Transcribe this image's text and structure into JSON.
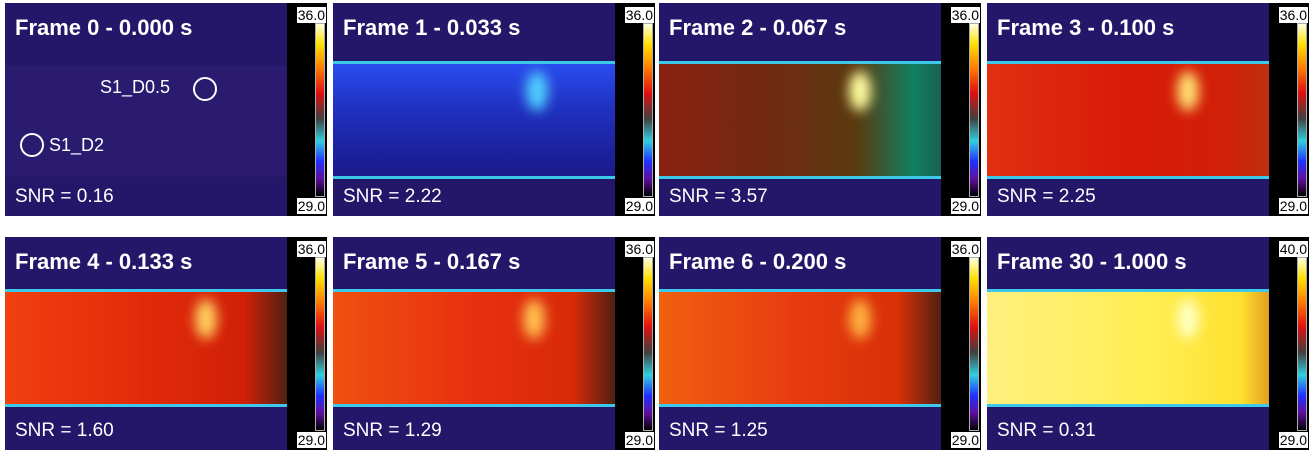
{
  "panels": [
    {
      "title": "Frame 0 - 0.000 s",
      "snr": "SNR = 0.16",
      "cbar_max": "36.0",
      "cbar_min": "29.0",
      "annotations": [
        "S1_D0.5",
        "S1_D2"
      ]
    },
    {
      "title": "Frame 1 - 0.033 s",
      "snr": "SNR = 2.22",
      "cbar_max": "36.0",
      "cbar_min": "29.0"
    },
    {
      "title": "Frame 2 - 0.067 s",
      "snr": "SNR = 3.57",
      "cbar_max": "36.0",
      "cbar_min": "29.0"
    },
    {
      "title": "Frame 3 - 0.100 s",
      "snr": "SNR = 2.25",
      "cbar_max": "36.0",
      "cbar_min": "29.0"
    },
    {
      "title": "Frame 4 - 0.133 s",
      "snr": "SNR = 1.60",
      "cbar_max": "36.0",
      "cbar_min": "29.0"
    },
    {
      "title": "Frame 5 - 0.167 s",
      "snr": "SNR = 1.29",
      "cbar_max": "36.0",
      "cbar_min": "29.0"
    },
    {
      "title": "Frame 6 - 0.200 s",
      "snr": "SNR = 1.25",
      "cbar_max": "36.0",
      "cbar_min": "29.0"
    },
    {
      "title": "Frame 30 - 1.000 s",
      "snr": "SNR = 0.31",
      "cbar_max": "40.0",
      "cbar_min": "29.0"
    }
  ]
}
